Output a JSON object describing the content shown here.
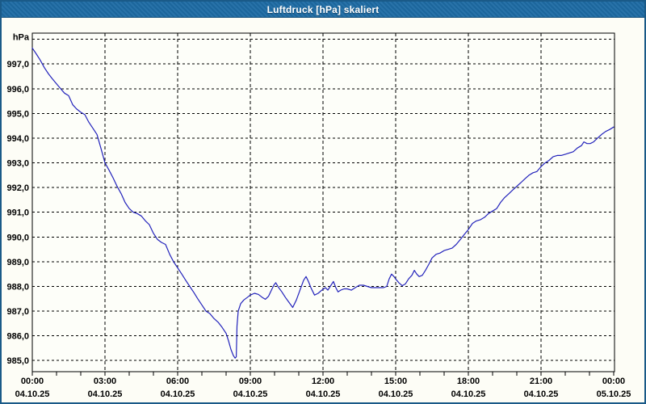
{
  "window": {
    "title": "Luftdruck [hPa] skaliert"
  },
  "colors": {
    "title_bar": "#1d6ba4",
    "window_border": "#1a5a88",
    "background": "#fdfdf6",
    "plot_background": "#fdfef9",
    "grid": "#000000",
    "axis": "#000000",
    "line": "#2222bb",
    "label": "#000000",
    "title_text": "#ffffff"
  },
  "chart_data": {
    "type": "line",
    "title": "Luftdruck [hPa] skaliert",
    "ylabel": "hPa",
    "xlabel": "",
    "grid": "dashed",
    "legend": "none",
    "ylim": [
      984.55,
      998.25
    ],
    "xlim_hours": [
      0,
      24
    ],
    "y_ticks": [
      {
        "value": 998,
        "label": ""
      },
      {
        "value": 997,
        "label": "997,0"
      },
      {
        "value": 996,
        "label": "996,0"
      },
      {
        "value": 995,
        "label": "995,0"
      },
      {
        "value": 994,
        "label": "994,0"
      },
      {
        "value": 993,
        "label": "993,0"
      },
      {
        "value": 992,
        "label": "992,0"
      },
      {
        "value": 991,
        "label": "991,0"
      },
      {
        "value": 990,
        "label": "990,0"
      },
      {
        "value": 989,
        "label": "989,0"
      },
      {
        "value": 988,
        "label": "988,0"
      },
      {
        "value": 987,
        "label": "987,0"
      },
      {
        "value": 986,
        "label": "986,0"
      },
      {
        "value": 985,
        "label": "985,0"
      }
    ],
    "x_ticks": [
      {
        "hours": 0,
        "time": "00:00",
        "date": "04.10.25",
        "gridline": false
      },
      {
        "hours": 3,
        "time": "03:00",
        "date": "04.10.25",
        "gridline": true
      },
      {
        "hours": 6,
        "time": "06:00",
        "date": "04.10.25",
        "gridline": true
      },
      {
        "hours": 9,
        "time": "09:00",
        "date": "04.10.25",
        "gridline": true
      },
      {
        "hours": 12,
        "time": "12:00",
        "date": "04.10.25",
        "gridline": true
      },
      {
        "hours": 15,
        "time": "15:00",
        "date": "04.10.25",
        "gridline": true
      },
      {
        "hours": 18,
        "time": "18:00",
        "date": "04.10.25",
        "gridline": true
      },
      {
        "hours": 21,
        "time": "21:00",
        "date": "04.10.25",
        "gridline": true
      },
      {
        "hours": 24,
        "time": "00:00",
        "date": "05.10.25",
        "gridline": false
      }
    ],
    "minor_tick_every_hours": 1,
    "series": [
      {
        "name": "Luftdruck",
        "unit": "hPa",
        "color": "#2222bb",
        "points": [
          [
            0.0,
            997.65
          ],
          [
            0.17,
            997.4
          ],
          [
            0.33,
            997.15
          ],
          [
            0.5,
            996.85
          ],
          [
            0.67,
            996.6
          ],
          [
            0.83,
            996.4
          ],
          [
            1.0,
            996.2
          ],
          [
            1.17,
            996.0
          ],
          [
            1.33,
            995.82
          ],
          [
            1.5,
            995.72
          ],
          [
            1.67,
            995.35
          ],
          [
            1.83,
            995.18
          ],
          [
            2.0,
            995.05
          ],
          [
            2.17,
            994.95
          ],
          [
            2.33,
            994.65
          ],
          [
            2.5,
            994.4
          ],
          [
            2.67,
            994.15
          ],
          [
            2.83,
            993.6
          ],
          [
            3.0,
            993.0
          ],
          [
            3.17,
            992.7
          ],
          [
            3.33,
            992.4
          ],
          [
            3.5,
            992.05
          ],
          [
            3.67,
            991.75
          ],
          [
            3.83,
            991.4
          ],
          [
            4.0,
            991.15
          ],
          [
            4.17,
            991.0
          ],
          [
            4.33,
            990.95
          ],
          [
            4.5,
            990.85
          ],
          [
            4.67,
            990.65
          ],
          [
            4.83,
            990.5
          ],
          [
            5.0,
            990.15
          ],
          [
            5.17,
            989.9
          ],
          [
            5.33,
            989.78
          ],
          [
            5.5,
            989.7
          ],
          [
            5.67,
            989.3
          ],
          [
            5.83,
            989.0
          ],
          [
            6.0,
            988.75
          ],
          [
            6.17,
            988.5
          ],
          [
            6.33,
            988.25
          ],
          [
            6.5,
            988.0
          ],
          [
            6.67,
            987.75
          ],
          [
            6.83,
            987.5
          ],
          [
            7.0,
            987.25
          ],
          [
            7.17,
            987.0
          ],
          [
            7.33,
            986.9
          ],
          [
            7.5,
            986.7
          ],
          [
            7.67,
            986.55
          ],
          [
            7.83,
            986.35
          ],
          [
            8.0,
            986.1
          ],
          [
            8.1,
            985.8
          ],
          [
            8.2,
            985.45
          ],
          [
            8.3,
            985.2
          ],
          [
            8.37,
            985.1
          ],
          [
            8.42,
            985.15
          ],
          [
            8.45,
            986.4
          ],
          [
            8.5,
            987.0
          ],
          [
            8.6,
            987.3
          ],
          [
            8.73,
            987.45
          ],
          [
            8.87,
            987.55
          ],
          [
            9.0,
            987.65
          ],
          [
            9.17,
            987.72
          ],
          [
            9.33,
            987.68
          ],
          [
            9.5,
            987.55
          ],
          [
            9.62,
            987.48
          ],
          [
            9.75,
            987.6
          ],
          [
            9.87,
            987.85
          ],
          [
            9.97,
            988.05
          ],
          [
            10.05,
            988.15
          ],
          [
            10.15,
            987.98
          ],
          [
            10.3,
            987.78
          ],
          [
            10.45,
            987.55
          ],
          [
            10.6,
            987.35
          ],
          [
            10.75,
            987.15
          ],
          [
            10.9,
            987.45
          ],
          [
            11.05,
            987.85
          ],
          [
            11.2,
            988.25
          ],
          [
            11.3,
            988.4
          ],
          [
            11.4,
            988.2
          ],
          [
            11.5,
            987.95
          ],
          [
            11.65,
            987.65
          ],
          [
            11.8,
            987.72
          ],
          [
            11.95,
            987.85
          ],
          [
            12.1,
            987.95
          ],
          [
            12.2,
            987.85
          ],
          [
            12.33,
            988.05
          ],
          [
            12.43,
            988.2
          ],
          [
            12.53,
            987.95
          ],
          [
            12.62,
            987.78
          ],
          [
            12.73,
            987.85
          ],
          [
            12.87,
            987.9
          ],
          [
            13.0,
            987.9
          ],
          [
            13.17,
            987.85
          ],
          [
            13.33,
            987.95
          ],
          [
            13.5,
            988.05
          ],
          [
            13.67,
            988.05
          ],
          [
            13.83,
            988.0
          ],
          [
            14.0,
            987.95
          ],
          [
            14.17,
            987.95
          ],
          [
            14.33,
            987.95
          ],
          [
            14.5,
            987.95
          ],
          [
            14.63,
            988.0
          ],
          [
            14.73,
            988.3
          ],
          [
            14.83,
            988.5
          ],
          [
            14.93,
            988.4
          ],
          [
            15.0,
            988.3
          ],
          [
            15.13,
            988.15
          ],
          [
            15.27,
            988.03
          ],
          [
            15.4,
            988.1
          ],
          [
            15.53,
            988.3
          ],
          [
            15.67,
            988.45
          ],
          [
            15.77,
            988.65
          ],
          [
            15.87,
            988.5
          ],
          [
            15.97,
            988.4
          ],
          [
            16.1,
            988.45
          ],
          [
            16.23,
            988.65
          ],
          [
            16.37,
            988.9
          ],
          [
            16.5,
            989.15
          ],
          [
            16.67,
            989.3
          ],
          [
            16.83,
            989.35
          ],
          [
            17.0,
            989.45
          ],
          [
            17.17,
            989.5
          ],
          [
            17.33,
            989.55
          ],
          [
            17.5,
            989.7
          ],
          [
            17.67,
            989.9
          ],
          [
            17.83,
            990.1
          ],
          [
            18.0,
            990.3
          ],
          [
            18.17,
            990.55
          ],
          [
            18.33,
            990.65
          ],
          [
            18.5,
            990.7
          ],
          [
            18.67,
            990.8
          ],
          [
            18.83,
            990.95
          ],
          [
            19.0,
            991.05
          ],
          [
            19.17,
            991.15
          ],
          [
            19.33,
            991.4
          ],
          [
            19.5,
            991.6
          ],
          [
            19.67,
            991.75
          ],
          [
            19.83,
            991.9
          ],
          [
            20.0,
            992.05
          ],
          [
            20.17,
            992.2
          ],
          [
            20.33,
            992.35
          ],
          [
            20.5,
            992.5
          ],
          [
            20.67,
            992.6
          ],
          [
            20.83,
            992.65
          ],
          [
            21.0,
            992.85
          ],
          [
            21.17,
            993.0
          ],
          [
            21.33,
            993.1
          ],
          [
            21.5,
            993.25
          ],
          [
            21.67,
            993.3
          ],
          [
            21.83,
            993.3
          ],
          [
            22.0,
            993.35
          ],
          [
            22.17,
            993.4
          ],
          [
            22.33,
            993.45
          ],
          [
            22.5,
            993.6
          ],
          [
            22.67,
            993.7
          ],
          [
            22.77,
            993.85
          ],
          [
            22.9,
            993.78
          ],
          [
            23.03,
            993.78
          ],
          [
            23.17,
            993.85
          ],
          [
            23.33,
            994.0
          ],
          [
            23.5,
            994.15
          ],
          [
            23.67,
            994.27
          ],
          [
            23.83,
            994.35
          ],
          [
            24.0,
            994.45
          ]
        ]
      }
    ]
  }
}
